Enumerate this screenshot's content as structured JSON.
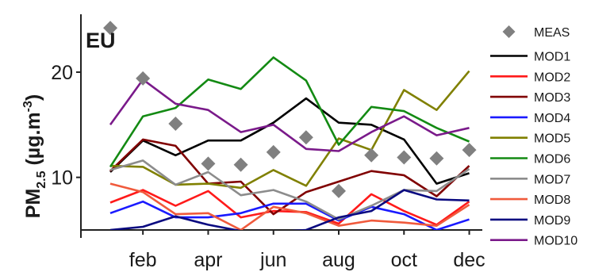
{
  "chart_data": {
    "type": "line",
    "panel_label": "EU",
    "ylabel": {
      "base": "PM",
      "sub": "2.5",
      "unit_open": " (µg.m",
      "unit_sup": "-3",
      "unit_close": ")"
    },
    "x_months": [
      1,
      2,
      3,
      4,
      5,
      6,
      7,
      8,
      9,
      10,
      11,
      12
    ],
    "x_tick_labels": [
      {
        "month": 2,
        "label": "feb"
      },
      {
        "month": 4,
        "label": "apr"
      },
      {
        "month": 6,
        "label": "jun"
      },
      {
        "month": 8,
        "label": "aug"
      },
      {
        "month": 10,
        "label": "oct"
      },
      {
        "month": 12,
        "label": "dec"
      }
    ],
    "xlim": [
      0.1,
      12.4
    ],
    "ylim": [
      5,
      25.5
    ],
    "y_ticks": [
      10,
      20
    ],
    "y_tick_labels": [
      "10",
      "20"
    ],
    "measured": {
      "name": "MEAS",
      "color": "#808080",
      "values": [
        24.2,
        19.4,
        15.1,
        11.3,
        11.2,
        12.4,
        13.8,
        8.7,
        12.1,
        11.9,
        11.8,
        12.6
      ]
    },
    "series": [
      {
        "name": "MOD1",
        "color": "#000000",
        "values": [
          10.5,
          13.5,
          12.1,
          13.5,
          13.5,
          15.2,
          17.5,
          15.2,
          15.0,
          13.6,
          9.4,
          10.4
        ]
      },
      {
        "name": "MOD2",
        "color": "#ff1a1a",
        "values": [
          7.6,
          8.8,
          7.3,
          8.7,
          6.2,
          6.8,
          6.7,
          5.6,
          8.4,
          6.8,
          5.5,
          7.7
        ]
      },
      {
        "name": "MOD3",
        "color": "#800000",
        "values": [
          10.6,
          13.6,
          13.0,
          9.4,
          9.6,
          6.5,
          8.6,
          9.6,
          10.6,
          10.2,
          8.2,
          11.1
        ]
      },
      {
        "name": "MOD4",
        "color": "#1a1aff",
        "values": [
          6.6,
          7.7,
          6.2,
          6.2,
          6.6,
          7.5,
          7.5,
          5.9,
          7.2,
          6.5,
          5.0,
          6.0
        ]
      },
      {
        "name": "MOD5",
        "color": "#808000",
        "values": [
          11.1,
          11.0,
          9.3,
          9.4,
          9.0,
          10.7,
          9.2,
          13.7,
          12.6,
          18.3,
          16.4,
          20.1
        ]
      },
      {
        "name": "MOD6",
        "color": "#138a13",
        "values": [
          11.0,
          15.8,
          16.6,
          19.3,
          18.4,
          21.4,
          19.2,
          13.1,
          16.7,
          16.3,
          14.7,
          13.4
        ]
      },
      {
        "name": "MOD7",
        "color": "#8c8c8c",
        "values": [
          10.7,
          11.6,
          9.3,
          10.5,
          8.3,
          8.8,
          7.7,
          6.0,
          7.3,
          8.8,
          8.7,
          10.8
        ]
      },
      {
        "name": "MOD8",
        "color": "#f05a3c",
        "values": [
          9.4,
          8.6,
          6.5,
          6.6,
          5.0,
          7.2,
          6.6,
          5.4,
          5.9,
          5.7,
          5.4,
          7.4
        ]
      },
      {
        "name": "MOD9",
        "color": "#0a0a80",
        "values": [
          5.0,
          5.3,
          6.3,
          5.5,
          4.9,
          4.8,
          5.0,
          6.2,
          6.8,
          8.8,
          7.9,
          7.8
        ]
      },
      {
        "name": "MOD10",
        "color": "#7a1a8a",
        "values": [
          15.0,
          19.3,
          17.0,
          16.4,
          14.3,
          15.0,
          12.7,
          12.5,
          14.3,
          15.8,
          14.0,
          14.7
        ]
      }
    ],
    "grid": false,
    "legend_position": "right"
  }
}
